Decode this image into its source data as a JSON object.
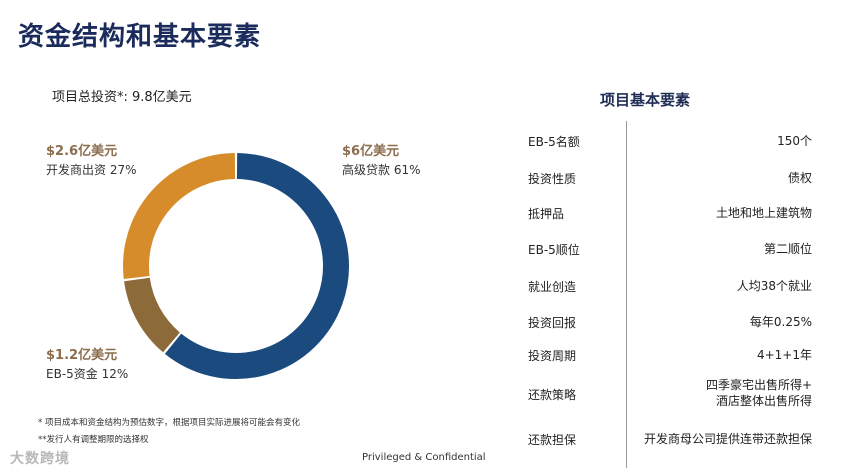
{
  "title": "资金结构和基本要素",
  "total_investment": "项目总投资*: 9.8亿美元",
  "chart_data": {
    "type": "pie",
    "style": "donut",
    "segments": [
      {
        "amount_label": "$6亿美元",
        "name": "高级贷款",
        "percent_label": "61%",
        "value": 61,
        "color": "#1b4a7e"
      },
      {
        "amount_label": "$1.2亿美元",
        "name": "EB-5资金",
        "percent_label": "12%",
        "value": 12,
        "color": "#8c6a3a"
      },
      {
        "amount_label": "$2.6亿美元",
        "name": "开发商出资",
        "percent_label": "27%",
        "value": 27,
        "color": "#d68c2a"
      }
    ]
  },
  "notes": [
    "* 项目成本和资金结构为预估数字，根据项目实际进展将可能会有变化",
    "**发行人有调整期限的选择权"
  ],
  "footer": "Privileged & Confidential",
  "watermark": "大数跨境",
  "table": {
    "title": "项目基本要素",
    "rows": [
      {
        "key": "EB-5名额",
        "value": "150个"
      },
      {
        "key": "投资性质",
        "value": "债权"
      },
      {
        "key": "抵押品",
        "value": "土地和地上建筑物"
      },
      {
        "key": "EB-5顺位",
        "value": "第二顺位"
      },
      {
        "key": "就业创造",
        "value": "人均38个就业"
      },
      {
        "key": "投资回报",
        "value": "每年0.25%"
      },
      {
        "key": "投资周期",
        "value": "4+1+1年"
      },
      {
        "key": "还款策略",
        "value_lines": [
          "四季豪宅出售所得+",
          "酒店整体出售所得"
        ]
      },
      {
        "key": "还款担保",
        "value": "开发商母公司提供连带还款担保"
      }
    ]
  }
}
